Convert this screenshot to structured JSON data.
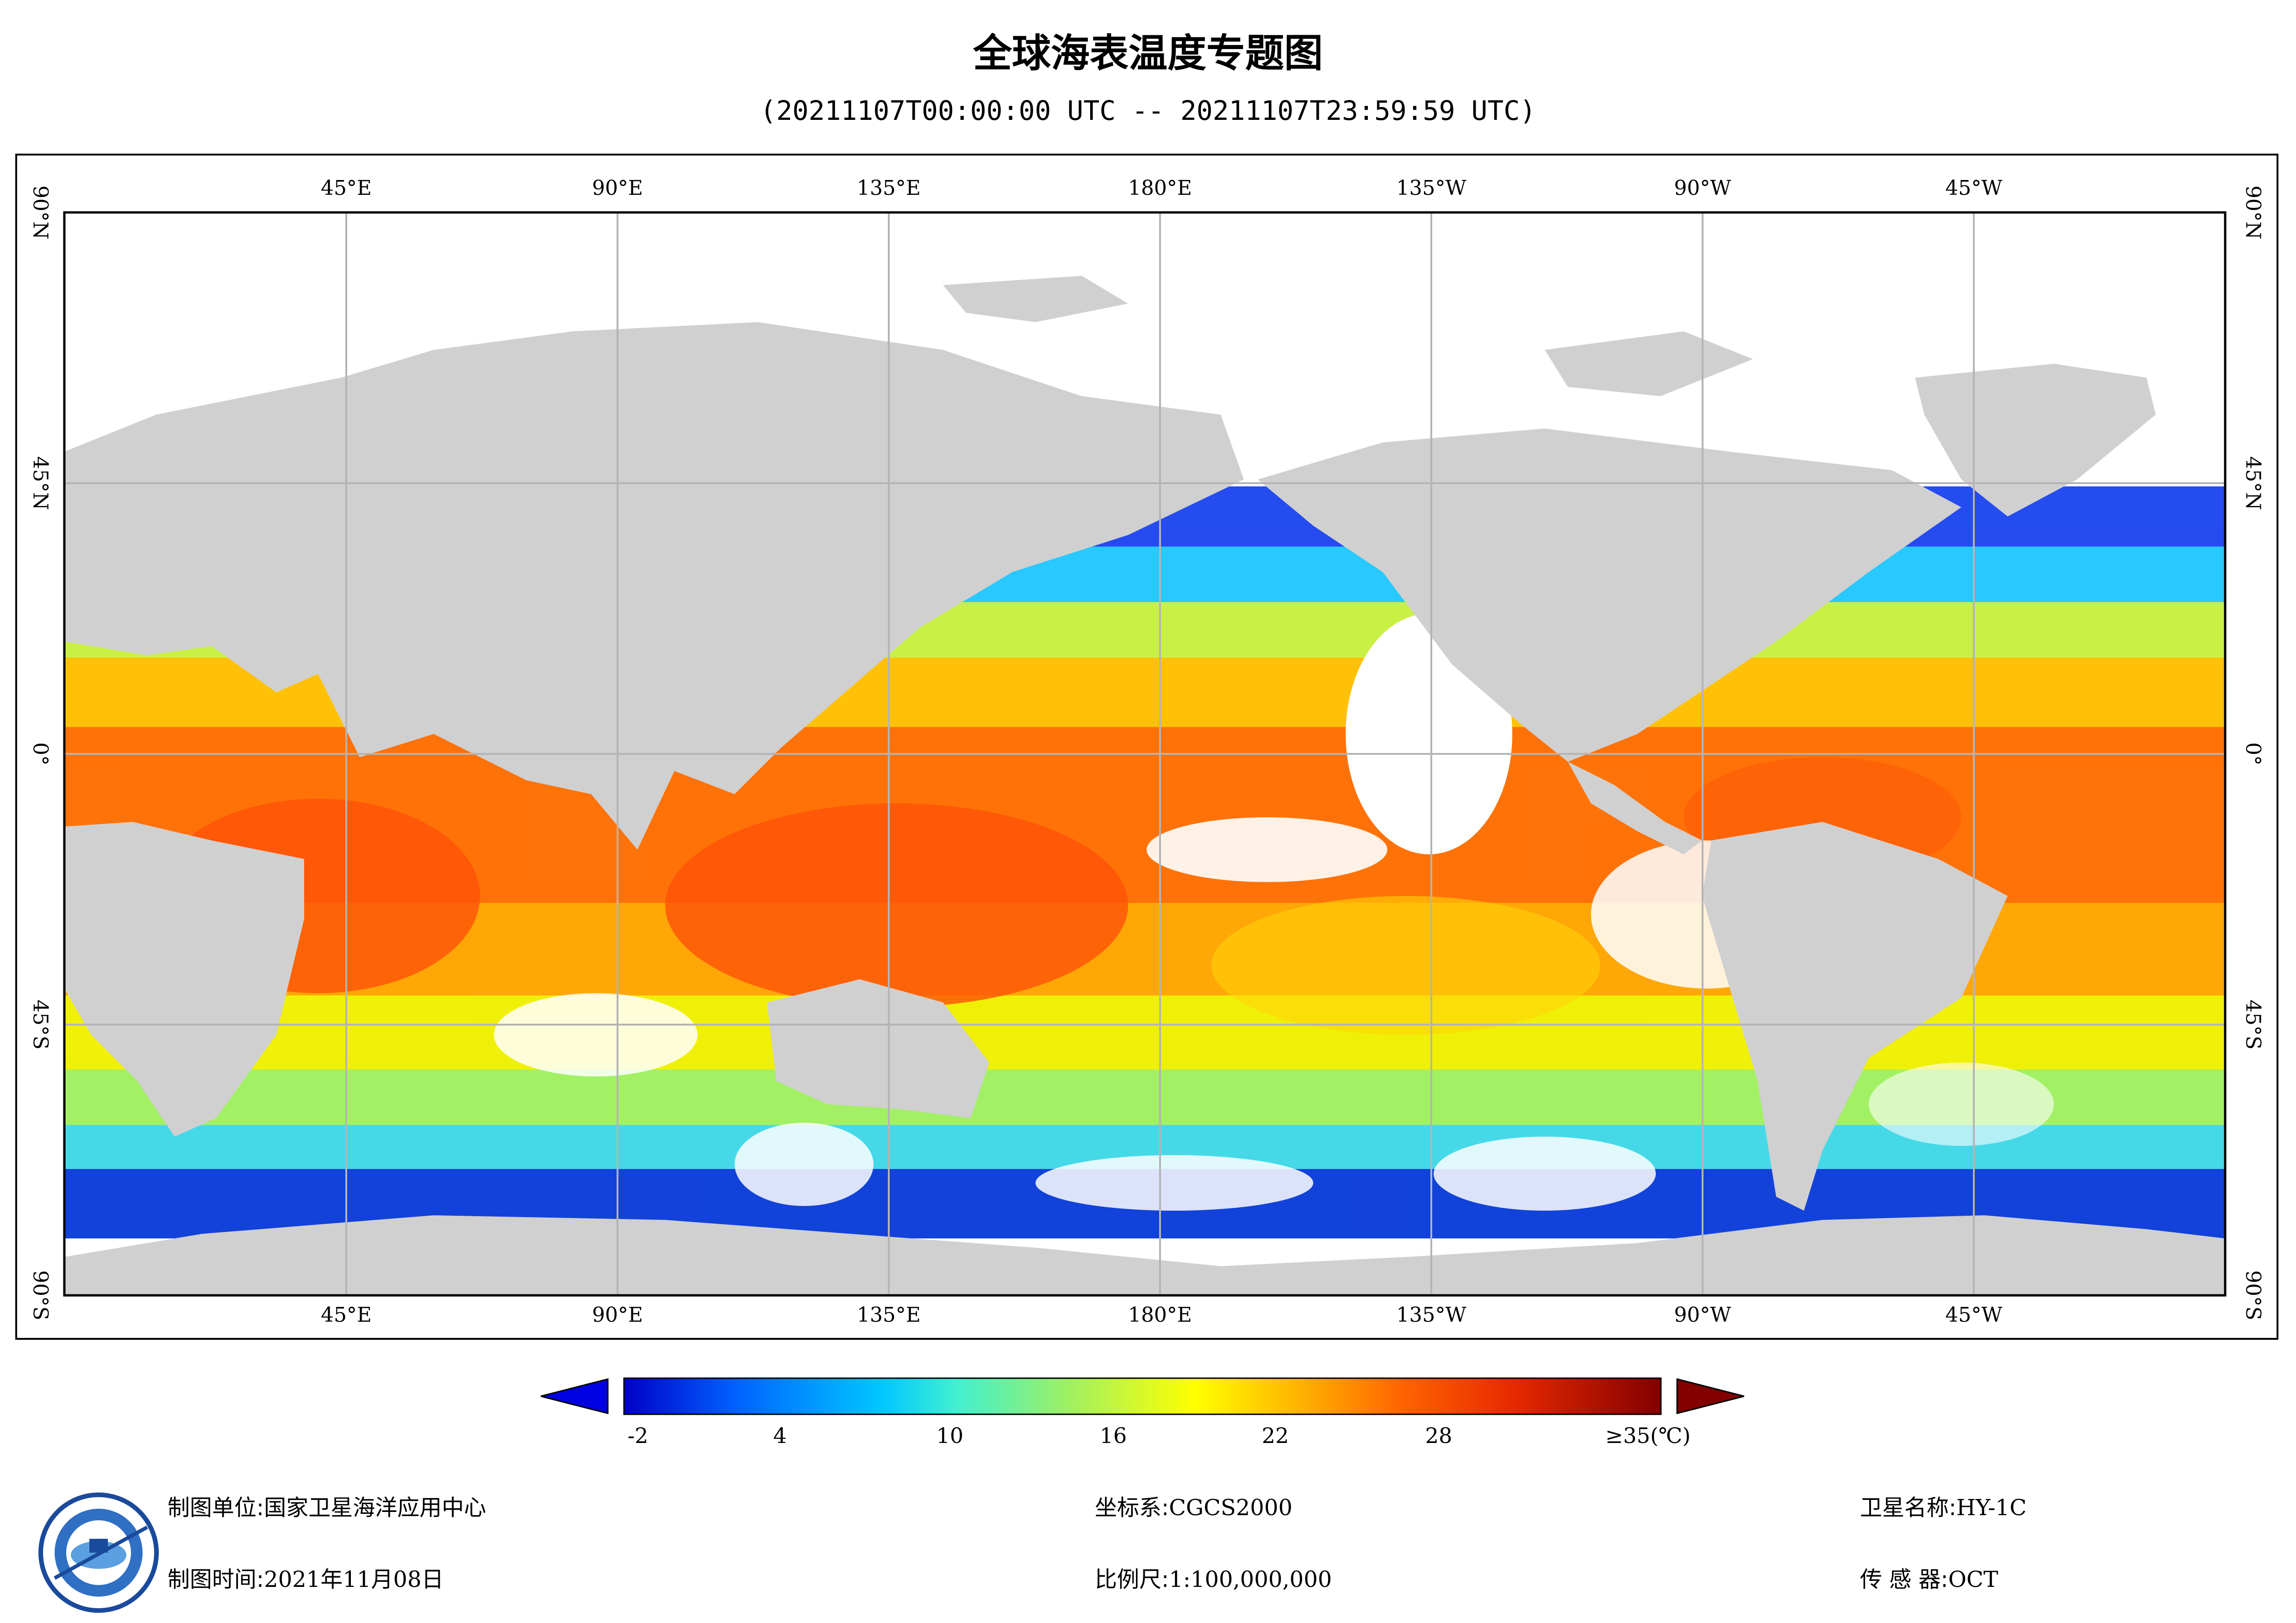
{
  "title": "全球海表温度专题图",
  "subtitle": "(20211107T00:00:00 UTC -- 20211107T23:59:59 UTC)",
  "grid_labels": {
    "top": [
      "45°E",
      "90°E",
      "135°E",
      "180°E",
      "135°W",
      "90°W",
      "45°W"
    ],
    "bottom": [
      "45°E",
      "90°E",
      "135°E",
      "180°E",
      "135°W",
      "90°W",
      "45°W"
    ],
    "left": [
      "90°N",
      "45°N",
      "0°",
      "45°S",
      "90°S"
    ],
    "right": [
      "90°N",
      "45°N",
      "0°",
      "45°S",
      "90°S"
    ]
  },
  "legend": {
    "ticks": [
      "-2",
      "4",
      "10",
      "16",
      "22",
      "28",
      "≥35(℃)"
    ],
    "min": -2,
    "max": 35,
    "unit": "℃"
  },
  "colors": {
    "land": "#d0d0d0",
    "no_data": "#ffffff",
    "grid": "#b4b4b4",
    "scale": [
      "#0000c8",
      "#0064ff",
      "#00c8ff",
      "#40f0d0",
      "#a0f060",
      "#ffff00",
      "#ffb400",
      "#ff6400",
      "#e62800",
      "#820000"
    ]
  },
  "footer": {
    "org_label": "制图单位:",
    "org_value": "国家卫星海洋应用中心",
    "date_label": "制图时间:",
    "date_value": "2021年11月08日",
    "crs_label": "坐标系:",
    "crs_value": "CGCS2000",
    "scale_label": "比例尺:",
    "scale_value": "1:100,000,000",
    "satellite_label": "卫星名称:",
    "satellite_value": "HY-1C",
    "sensor_label": "传 感 器:",
    "sensor_value": "OCT"
  }
}
